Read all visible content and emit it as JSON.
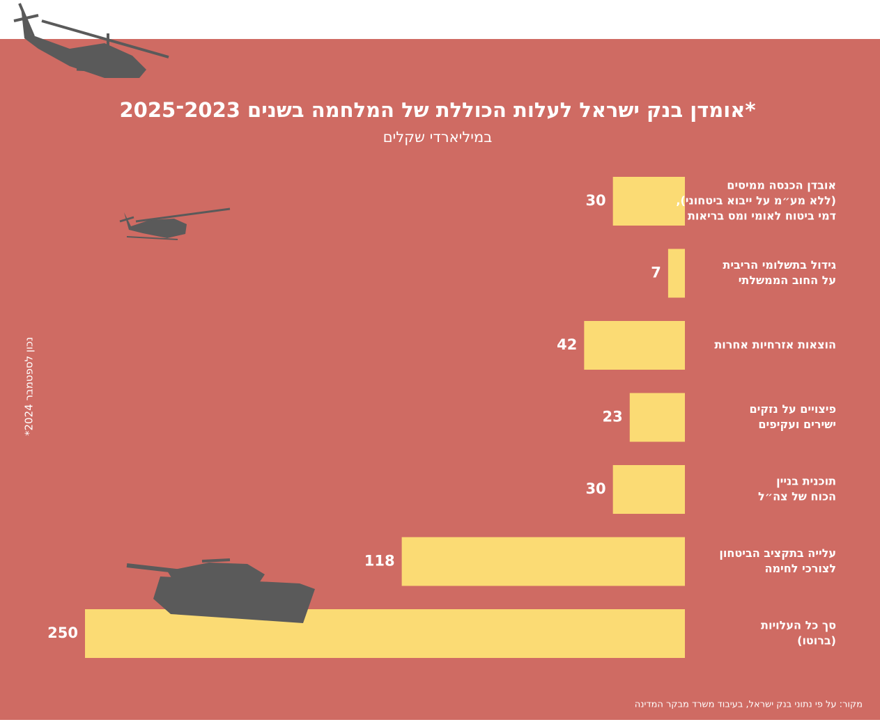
{
  "chart_data": {
    "type": "bar",
    "orientation": "horizontal",
    "title": "אומדן בנק ישראל לעלות הכוללת של המלחמה בשנים 2023־2025*",
    "subtitle": "במיליארדי שקלים",
    "note": "*נכון לספטמבר 2024",
    "source": "מקור: על פי נתוני בנק ישראל, בעיבוד משרד מבקר המדינה",
    "categories": [
      [
        "אובדן הכנסה ממיסים",
        "(ללא מע״מ על ייבוא ביטחוני),",
        "דמי ביטוח לאומי ומס בריאות"
      ],
      [
        "גידול בתשלומי הריבית",
        "על החוב הממשלתי"
      ],
      [
        "הוצאות אזרחיות אחרות"
      ],
      [
        "פיצויים על נזקים",
        "ישירים ועקיפים"
      ],
      [
        "תוכנית בניין",
        "הכוח של צה״ל"
      ],
      [
        "עלייה בתקציב הביטחון",
        "לצורכי לחימה"
      ],
      [
        "סך כל העלויות",
        "(ברוטו)"
      ]
    ],
    "values": [
      30,
      7,
      42,
      23,
      30,
      118,
      250
    ],
    "color": "#fbdb74"
  }
}
